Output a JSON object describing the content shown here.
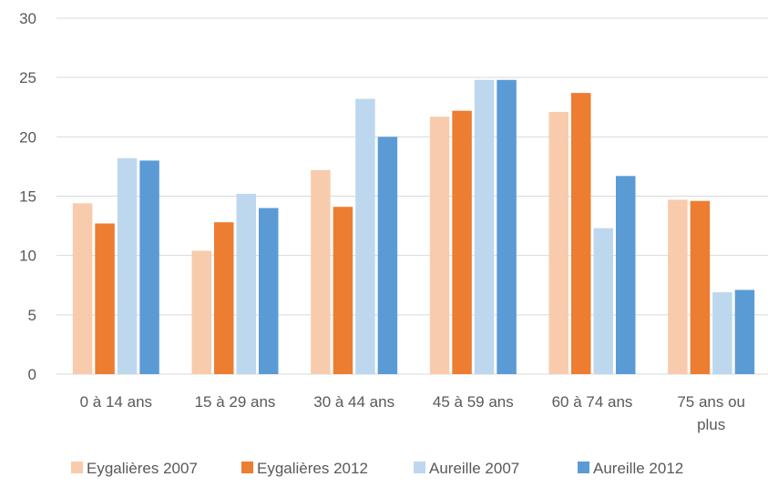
{
  "chart_data": {
    "type": "bar",
    "title": "",
    "xlabel": "",
    "ylabel": "",
    "ylim": [
      0,
      30
    ],
    "yticks": [
      0,
      5,
      10,
      15,
      20,
      25,
      30
    ],
    "grid": true,
    "legend_position": "bottom",
    "categories": [
      [
        "0 à 14 ans"
      ],
      [
        "15 à 29 ans"
      ],
      [
        "30 à 44 ans"
      ],
      [
        "45 à 59 ans"
      ],
      [
        "60 à 74 ans"
      ],
      [
        "75 ans ou",
        "plus"
      ]
    ],
    "series": [
      {
        "name": "Eygalières 2007",
        "color": "#f8cbad",
        "values": [
          14.4,
          10.4,
          17.2,
          21.7,
          22.1,
          14.7
        ]
      },
      {
        "name": "Eygalières 2012",
        "color": "#ed7d31",
        "values": [
          12.7,
          12.8,
          14.1,
          22.2,
          23.7,
          14.6
        ]
      },
      {
        "name": "Aureille 2007",
        "color": "#bdd7ee",
        "values": [
          18.2,
          15.2,
          23.2,
          24.8,
          12.3,
          6.9
        ]
      },
      {
        "name": "Aureille 2012",
        "color": "#5b9bd5",
        "values": [
          18.0,
          14.0,
          20.0,
          24.8,
          16.7,
          7.1
        ]
      }
    ]
  }
}
